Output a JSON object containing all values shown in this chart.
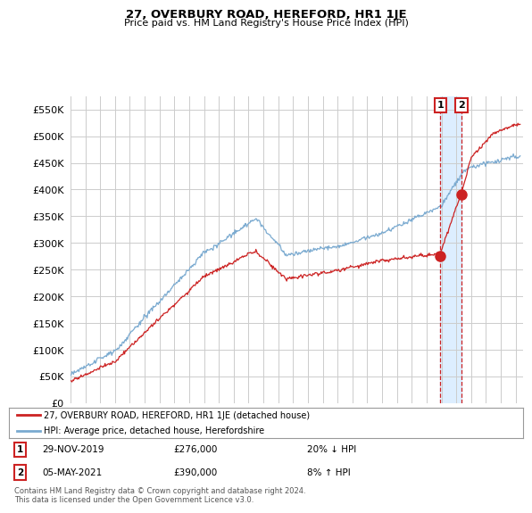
{
  "title": "27, OVERBURY ROAD, HEREFORD, HR1 1JE",
  "subtitle": "Price paid vs. HM Land Registry's House Price Index (HPI)",
  "ylabel_ticks": [
    "£0",
    "£50K",
    "£100K",
    "£150K",
    "£200K",
    "£250K",
    "£300K",
    "£350K",
    "£400K",
    "£450K",
    "£500K",
    "£550K"
  ],
  "ytick_values": [
    0,
    50000,
    100000,
    150000,
    200000,
    250000,
    300000,
    350000,
    400000,
    450000,
    500000,
    550000
  ],
  "ylim": [
    0,
    575000
  ],
  "xlim_start": 1995.0,
  "xlim_end": 2025.5,
  "hpi_color": "#7aaad0",
  "price_color": "#cc2222",
  "sale1_x": 2019.92,
  "sale2_x": 2021.35,
  "sale1_price": 276000,
  "sale2_price": 390000,
  "sale1_date": "29-NOV-2019",
  "sale2_date": "05-MAY-2021",
  "sale1_pct": "20% ↓ HPI",
  "sale2_pct": "8% ↑ HPI",
  "legend_label1": "27, OVERBURY ROAD, HEREFORD, HR1 1JE (detached house)",
  "legend_label2": "HPI: Average price, detached house, Herefordshire",
  "footnote": "Contains HM Land Registry data © Crown copyright and database right 2024.\nThis data is licensed under the Open Government Licence v3.0.",
  "background_color": "#ffffff",
  "grid_color": "#cccccc",
  "shade_color": "#ddeeff"
}
